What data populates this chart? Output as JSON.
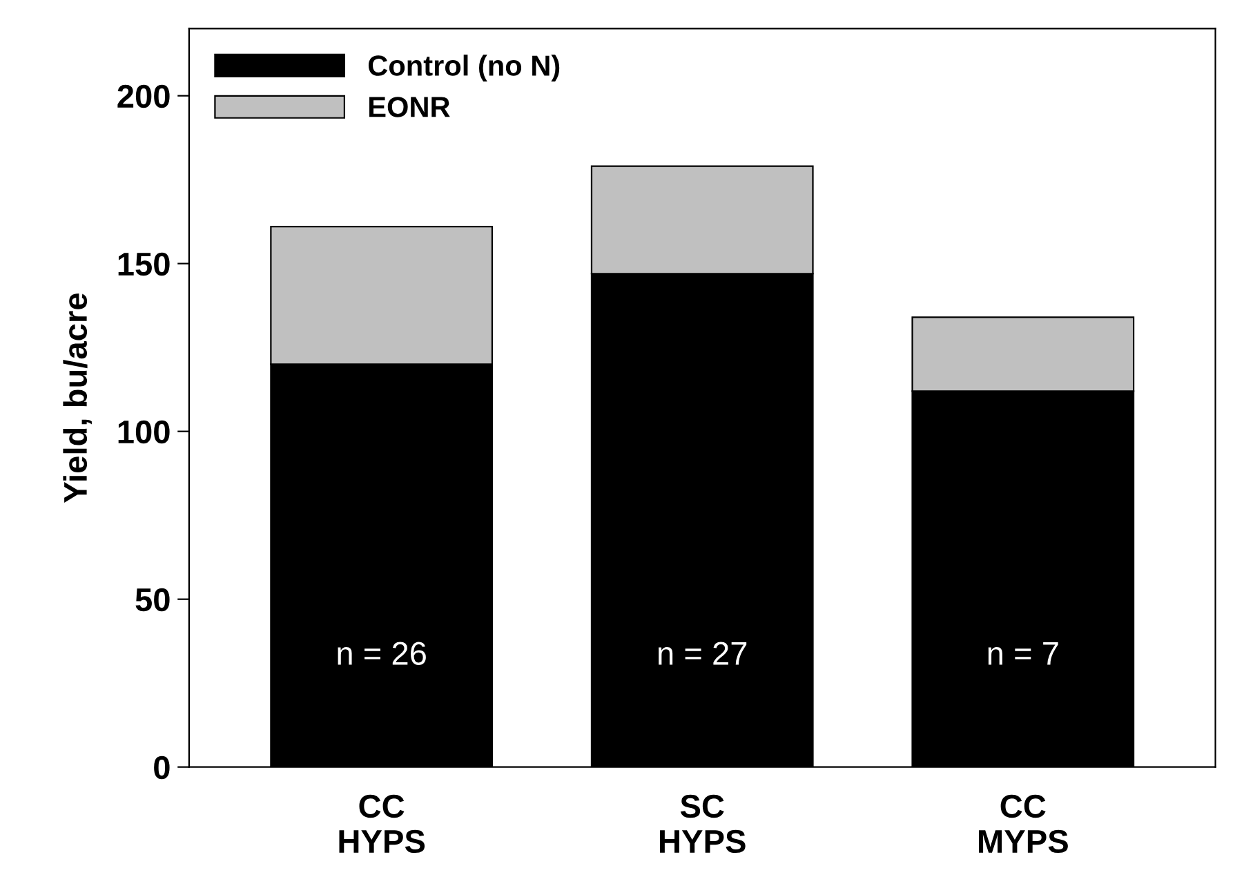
{
  "chart_data": {
    "type": "bar",
    "stacked": true,
    "ylabel": "Yield, bu/acre",
    "categories": [
      "CC\nHYPS",
      "SC\nHYPS",
      "CC\nMYPS"
    ],
    "series": [
      {
        "name": "Control (no N)",
        "color": "#000000",
        "values": [
          120,
          147,
          112
        ]
      },
      {
        "name": "EONR",
        "color": "#c0c0c0",
        "values": [
          41,
          32,
          22
        ]
      }
    ],
    "ylim": [
      0,
      220
    ],
    "yticks": [
      0,
      50,
      100,
      150,
      200
    ],
    "grid": false,
    "legend": "top left",
    "annotations": [
      "n = 26",
      "n = 27",
      "n = 7"
    ]
  }
}
